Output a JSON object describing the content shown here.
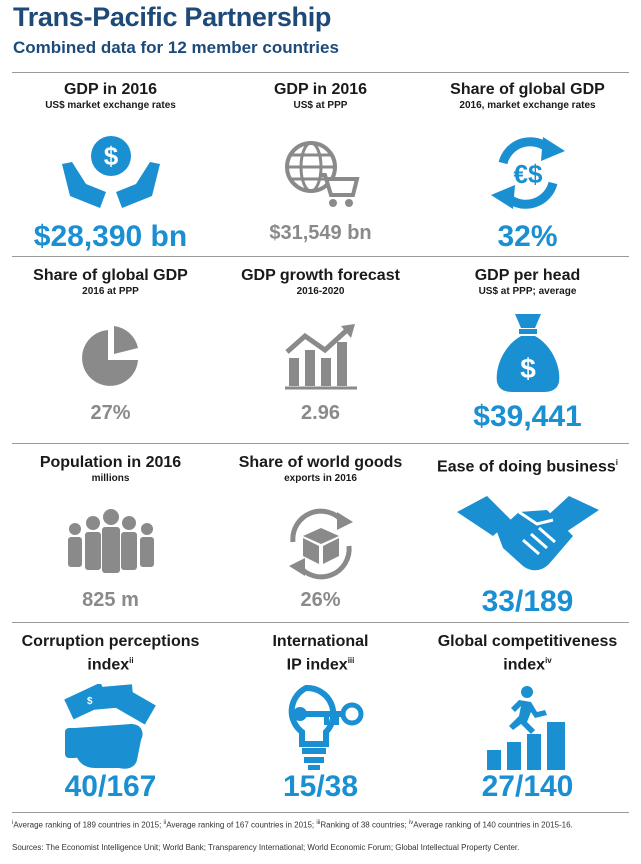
{
  "header": {
    "title": "Trans-Pacific Partnership",
    "subtitle": "Combined data for 12 member countries"
  },
  "colors": {
    "brand_blue": "#1a8fd1",
    "title_navy": "#1e4a7a",
    "grey": "#8a8a8a"
  },
  "cells": [
    {
      "head": "GDP in 2016",
      "sub": "US$ market exchange rates",
      "value": "$28,390 bn",
      "icon": "hands-dollar-icon"
    },
    {
      "head": "GDP in 2016",
      "sub": "US$ at PPP",
      "value": "$31,549 bn",
      "icon": "globe-cart-icon"
    },
    {
      "head": "Share of global GDP",
      "sub": "2016, market exchange rates",
      "value": "32%",
      "icon": "euro-dollar-exchange-icon"
    },
    {
      "head": "Share of global GDP",
      "sub": "2016 at PPP",
      "value": "27%",
      "icon": "pie-chart-icon"
    },
    {
      "head": "GDP growth forecast",
      "sub": "2016-2020",
      "value": "2.96",
      "icon": "growth-chart-icon"
    },
    {
      "head": "GDP per head",
      "sub": "US$ at PPP; average",
      "value": "$39,441",
      "icon": "money-bag-icon"
    },
    {
      "head": "Population in 2016",
      "sub": "millions",
      "value": "825 m",
      "icon": "people-group-icon"
    },
    {
      "head": "Share of world goods",
      "sub": "exports in 2016",
      "value": "26%",
      "icon": "box-cycle-icon"
    },
    {
      "head": "Ease of doing business",
      "sup": "i",
      "sub": "",
      "value": "33/189",
      "icon": "handshake-icon"
    },
    {
      "head_line1": "Corruption perceptions",
      "head_line2": "index",
      "sup": "ii",
      "value": "40/167",
      "icon": "hand-cash-icon"
    },
    {
      "head_line1": "International",
      "head_line2": "IP index",
      "sup": "iii",
      "value": "15/38",
      "icon": "bulb-key-icon"
    },
    {
      "head_line1": "Global competitiveness",
      "head_line2": "index",
      "sup": "iv",
      "value": "27/140",
      "icon": "runner-bars-icon"
    }
  ],
  "footnotes": {
    "n1_mark": "i",
    "n1": "Average ranking of 189 countries in 2015; ",
    "n2_mark": "ii",
    "n2": "Average ranking of 167 countries in 2015; ",
    "n3_mark": "iii",
    "n3": "Ranking of 38 countries; ",
    "n4_mark": "iv",
    "n4": "Average ranking of 140 countries in 2015-16."
  },
  "sources": "Sources: The Economist Intelligence Unit; World Bank; Transparency International; World Economic Forum; Global Intellectual Property Center."
}
